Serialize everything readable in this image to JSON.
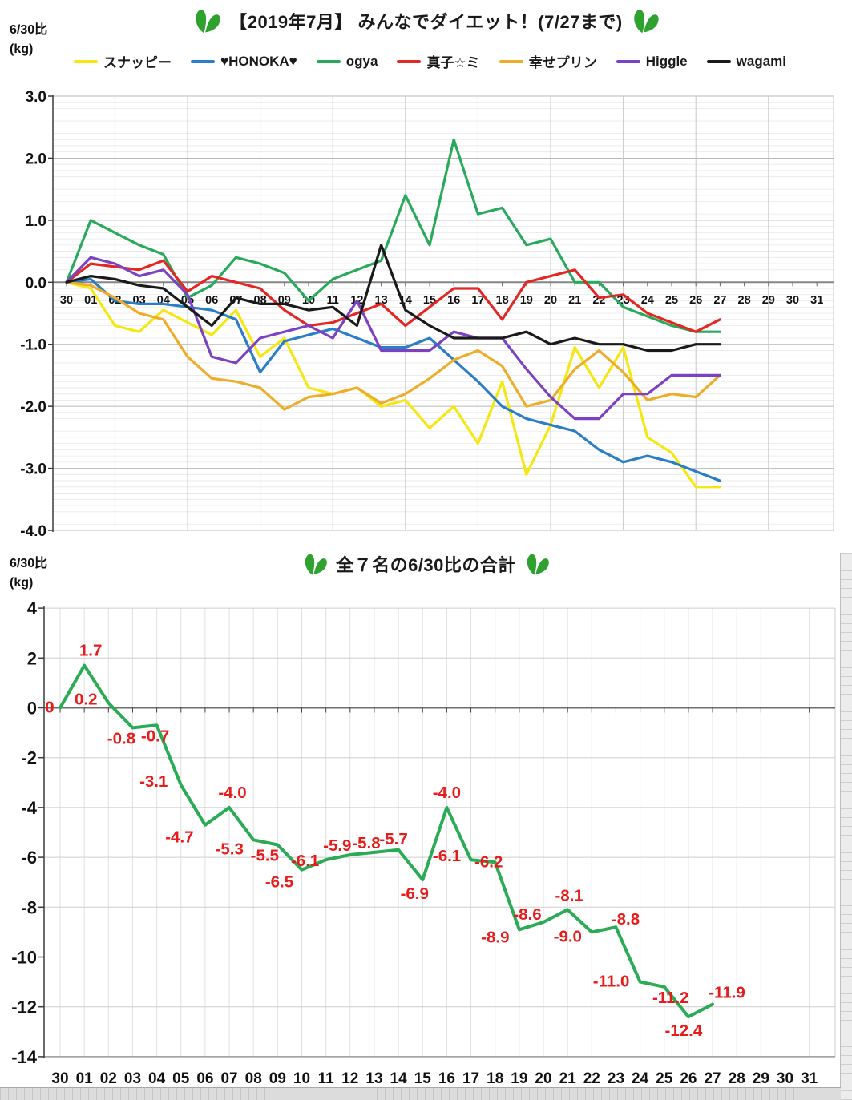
{
  "icons": {
    "heart_color": "#2EA12E"
  },
  "text_color": "#1a1a1a",
  "label_color": "#E81B1B",
  "chart_data": [
    {
      "type": "line",
      "title": "【2019年7月】 みんなでダイエット！(7/27まで)",
      "ylabel_lines": {
        "l1": "6/30比",
        "l2": "(kg)"
      },
      "x_categories": [
        "30",
        "01",
        "02",
        "03",
        "04",
        "05",
        "06",
        "07",
        "08",
        "09",
        "10",
        "11",
        "12",
        "13",
        "14",
        "15",
        "16",
        "17",
        "18",
        "19",
        "20",
        "21",
        "22",
        "23",
        "24",
        "25",
        "26",
        "27",
        "28",
        "29",
        "30",
        "31"
      ],
      "ylim": [
        -4.0,
        3.0
      ],
      "ytick_labels": [
        "3.0",
        "2.0",
        "1.0",
        "0.0",
        "-1.0",
        "-2.0",
        "-3.0",
        "-4.0"
      ],
      "grid": {
        "minor_h_step": 0.1,
        "major_h_step": 1.0,
        "major_v_every": 3
      },
      "legend_position": "top",
      "series": [
        {
          "name": "スナッピー",
          "color": "#F6E712",
          "values": [
            0,
            -0.1,
            -0.7,
            -0.8,
            -0.45,
            -0.65,
            -0.85,
            -0.45,
            -1.2,
            -0.9,
            -1.7,
            -1.8,
            -1.7,
            -2.0,
            -1.9,
            -2.35,
            -2.0,
            -2.6,
            -1.6,
            -3.1,
            -2.3,
            -1.05,
            -1.7,
            -1.05,
            -2.5,
            -2.75,
            -3.3,
            -3.3
          ]
        },
        {
          "name": "♥HONOKA♥",
          "color": "#2A7EC5",
          "values": [
            0,
            0.05,
            -0.3,
            -0.35,
            -0.35,
            -0.4,
            -0.45,
            -0.6,
            -1.45,
            -0.95,
            -0.85,
            -0.75,
            -0.9,
            -1.05,
            -1.05,
            -0.9,
            -1.25,
            -1.6,
            -2.0,
            -2.2,
            -2.3,
            -2.4,
            -2.7,
            -2.9,
            -2.8,
            -2.9,
            -3.05,
            -3.2
          ]
        },
        {
          "name": "ogya",
          "color": "#29A95B",
          "values": [
            0,
            1.0,
            0.8,
            0.6,
            0.45,
            -0.25,
            -0.05,
            0.4,
            0.3,
            0.15,
            -0.3,
            0.05,
            0.2,
            0.35,
            1.4,
            0.6,
            2.3,
            1.1,
            1.2,
            0.6,
            0.7,
            0.0,
            0.0,
            -0.4,
            -0.55,
            -0.7,
            -0.8,
            -0.8
          ]
        },
        {
          "name": "真子☆ミ",
          "color": "#E32724",
          "values": [
            0,
            0.3,
            0.25,
            0.2,
            0.35,
            -0.15,
            0.1,
            0.0,
            -0.1,
            -0.45,
            -0.7,
            -0.65,
            -0.5,
            -0.35,
            -0.7,
            -0.4,
            -0.1,
            -0.1,
            -0.6,
            0.0,
            0.1,
            0.2,
            -0.25,
            -0.2,
            -0.5,
            -0.65,
            -0.8,
            -0.6
          ]
        },
        {
          "name": "幸せプリン",
          "color": "#EFAC28",
          "values": [
            0,
            -0.05,
            -0.25,
            -0.5,
            -0.6,
            -1.2,
            -1.55,
            -1.6,
            -1.7,
            -2.05,
            -1.85,
            -1.8,
            -1.7,
            -1.95,
            -1.8,
            -1.55,
            -1.25,
            -1.1,
            -1.35,
            -2.0,
            -1.9,
            -1.4,
            -1.1,
            -1.45,
            -1.9,
            -1.8,
            -1.85,
            -1.5
          ]
        },
        {
          "name": "Higgle",
          "color": "#7C42C0",
          "values": [
            0,
            0.4,
            0.3,
            0.1,
            0.2,
            -0.2,
            -1.2,
            -1.3,
            -0.9,
            -0.8,
            -0.7,
            -0.9,
            -0.3,
            -1.1,
            -1.1,
            -1.1,
            -0.8,
            -0.9,
            -0.9,
            -1.4,
            -1.85,
            -2.2,
            -2.2,
            -1.8,
            -1.8,
            -1.5,
            -1.5,
            -1.5
          ]
        },
        {
          "name": "wagami",
          "color": "#1A1A1A",
          "values": [
            0,
            0.1,
            0.05,
            -0.05,
            -0.1,
            -0.4,
            -0.7,
            -0.25,
            -0.35,
            -0.35,
            -0.45,
            -0.4,
            -0.7,
            0.6,
            -0.45,
            -0.7,
            -0.9,
            -0.9,
            -0.9,
            -0.8,
            -1.0,
            -0.9,
            -1.0,
            -1.0,
            -1.1,
            -1.1,
            -1.0,
            -1.0
          ]
        }
      ]
    },
    {
      "type": "line",
      "title": "全７名の6/30比の合計",
      "ylabel_lines": {
        "l1": "6/30比",
        "l2": "(kg)"
      },
      "x_categories": [
        "30",
        "01",
        "02",
        "03",
        "04",
        "05",
        "06",
        "07",
        "08",
        "09",
        "10",
        "11",
        "12",
        "13",
        "14",
        "15",
        "16",
        "17",
        "18",
        "19",
        "20",
        "21",
        "22",
        "23",
        "24",
        "25",
        "26",
        "27",
        "28",
        "29",
        "30",
        "31"
      ],
      "ylim": [
        -14,
        4
      ],
      "ytick_labels": [
        "4",
        "2",
        "0",
        "-2",
        "-4",
        "-6",
        "-8",
        "-10",
        "-12",
        "-14"
      ],
      "grid": {
        "major_h_step": 2,
        "major_v_every": 1
      },
      "legend_position": "none",
      "series": [
        {
          "name": "合計",
          "color": "#2BAB55",
          "values": [
            0,
            1.7,
            0.2,
            -0.8,
            -0.7,
            -3.1,
            -4.7,
            -4.0,
            -5.3,
            -5.5,
            -6.5,
            -6.1,
            -5.9,
            -5.8,
            -5.7,
            -6.9,
            -4.0,
            -6.1,
            -6.2,
            -8.9,
            -8.6,
            -8.1,
            -9.0,
            -8.8,
            -11.0,
            -11.2,
            -12.4,
            -11.9
          ]
        }
      ],
      "point_labels": {
        "color": "#E81B1B",
        "texts": [
          "0",
          "1.7",
          "0.2",
          "-0.8",
          "-0.7",
          "-3.1",
          "-4.7",
          "-4.0",
          "-5.3",
          "-5.5",
          "-6.5",
          "-6.1",
          "-5.9",
          "-5.8",
          "-5.7",
          "-6.9",
          "-4.0",
          "-6.1",
          "-6.2",
          "-8.9",
          "-8.6",
          "-8.1",
          "-9.0",
          "-8.8",
          "-11.0",
          "-11.2",
          "-12.4",
          "-11.9"
        ],
        "dx": [
          -13,
          8,
          -28,
          -14,
          -2,
          -34,
          -32,
          4,
          -30,
          -16,
          -28,
          -26,
          -16,
          -10,
          -6,
          -10,
          0,
          -30,
          -8,
          -30,
          -20,
          2,
          -30,
          12,
          -36,
          8,
          -6,
          18
        ],
        "dy": [
          6,
          -12,
          2,
          20,
          20,
          2,
          22,
          -12,
          18,
          20,
          22,
          8,
          -5,
          -5,
          -7,
          24,
          -12,
          2,
          6,
          16,
          -3,
          -11,
          12,
          -3,
          6,
          20,
          24,
          -8
        ]
      }
    }
  ]
}
